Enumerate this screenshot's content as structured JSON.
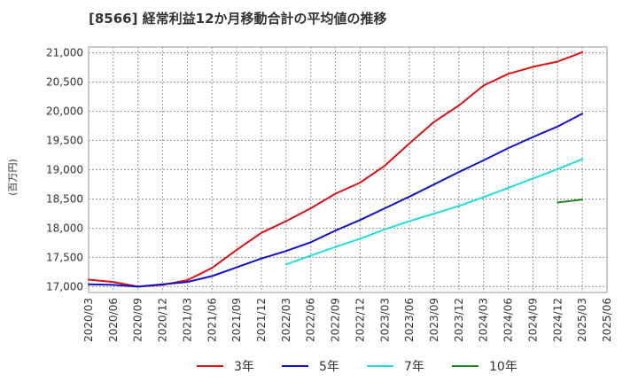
{
  "chart_data": {
    "type": "line",
    "title": "[8566]  経常利益12か月移動合計の平均値の推移",
    "ylabel": "(百万円)",
    "xlabel": "",
    "ylim": [
      16900,
      21100
    ],
    "yticks": [
      17000,
      17500,
      18000,
      18500,
      19000,
      19500,
      20000,
      20500,
      21000
    ],
    "ytick_labels": [
      "17,000",
      "17,500",
      "18,000",
      "18,500",
      "19,000",
      "19,500",
      "20,000",
      "20,500",
      "21,000"
    ],
    "xticks": [
      "2020/03",
      "2020/06",
      "2020/09",
      "2020/12",
      "2021/03",
      "2021/06",
      "2021/09",
      "2021/12",
      "2022/03",
      "2022/06",
      "2022/09",
      "2022/12",
      "2023/03",
      "2023/06",
      "2023/09",
      "2023/12",
      "2024/03",
      "2024/06",
      "2024/09",
      "2024/12",
      "2025/03",
      "2025/06"
    ],
    "grid": true,
    "legend_position": "bottom",
    "series": [
      {
        "name": "3年",
        "color": "#dd1111",
        "points": [
          [
            "2020/03",
            17120
          ],
          [
            "2020/06",
            17080
          ],
          [
            "2020/09",
            17000
          ],
          [
            "2020/12",
            17030
          ],
          [
            "2021/03",
            17110
          ],
          [
            "2021/06",
            17320
          ],
          [
            "2021/09",
            17630
          ],
          [
            "2021/12",
            17920
          ],
          [
            "2022/03",
            18120
          ],
          [
            "2022/06",
            18340
          ],
          [
            "2022/09",
            18590
          ],
          [
            "2022/12",
            18780
          ],
          [
            "2023/03",
            19070
          ],
          [
            "2023/06",
            19450
          ],
          [
            "2023/09",
            19820
          ],
          [
            "2023/12",
            20100
          ],
          [
            "2024/03",
            20440
          ],
          [
            "2024/06",
            20640
          ],
          [
            "2024/09",
            20760
          ],
          [
            "2024/12",
            20850
          ],
          [
            "2025/03",
            21010
          ]
        ]
      },
      {
        "name": "5年",
        "color": "#1111cc",
        "points": [
          [
            "2020/03",
            17040
          ],
          [
            "2020/06",
            17030
          ],
          [
            "2020/09",
            17000
          ],
          [
            "2020/12",
            17040
          ],
          [
            "2021/03",
            17080
          ],
          [
            "2021/06",
            17180
          ],
          [
            "2021/09",
            17330
          ],
          [
            "2021/12",
            17480
          ],
          [
            "2022/03",
            17610
          ],
          [
            "2022/06",
            17760
          ],
          [
            "2022/09",
            17960
          ],
          [
            "2022/12",
            18140
          ],
          [
            "2023/03",
            18340
          ],
          [
            "2023/06",
            18540
          ],
          [
            "2023/09",
            18750
          ],
          [
            "2023/12",
            18960
          ],
          [
            "2024/03",
            19160
          ],
          [
            "2024/06",
            19370
          ],
          [
            "2024/09",
            19560
          ],
          [
            "2024/12",
            19740
          ],
          [
            "2025/03",
            19960
          ]
        ]
      },
      {
        "name": "7年",
        "color": "#22dddd",
        "points": [
          [
            "2022/03",
            17380
          ],
          [
            "2022/06",
            17530
          ],
          [
            "2022/09",
            17680
          ],
          [
            "2022/12",
            17820
          ],
          [
            "2023/03",
            17980
          ],
          [
            "2023/06",
            18120
          ],
          [
            "2023/09",
            18250
          ],
          [
            "2023/12",
            18380
          ],
          [
            "2024/03",
            18530
          ],
          [
            "2024/06",
            18690
          ],
          [
            "2024/09",
            18850
          ],
          [
            "2024/12",
            19010
          ],
          [
            "2025/03",
            19180
          ]
        ]
      },
      {
        "name": "10年",
        "color": "#228822",
        "points": [
          [
            "2024/12",
            18440
          ],
          [
            "2025/03",
            18490
          ]
        ]
      }
    ]
  }
}
